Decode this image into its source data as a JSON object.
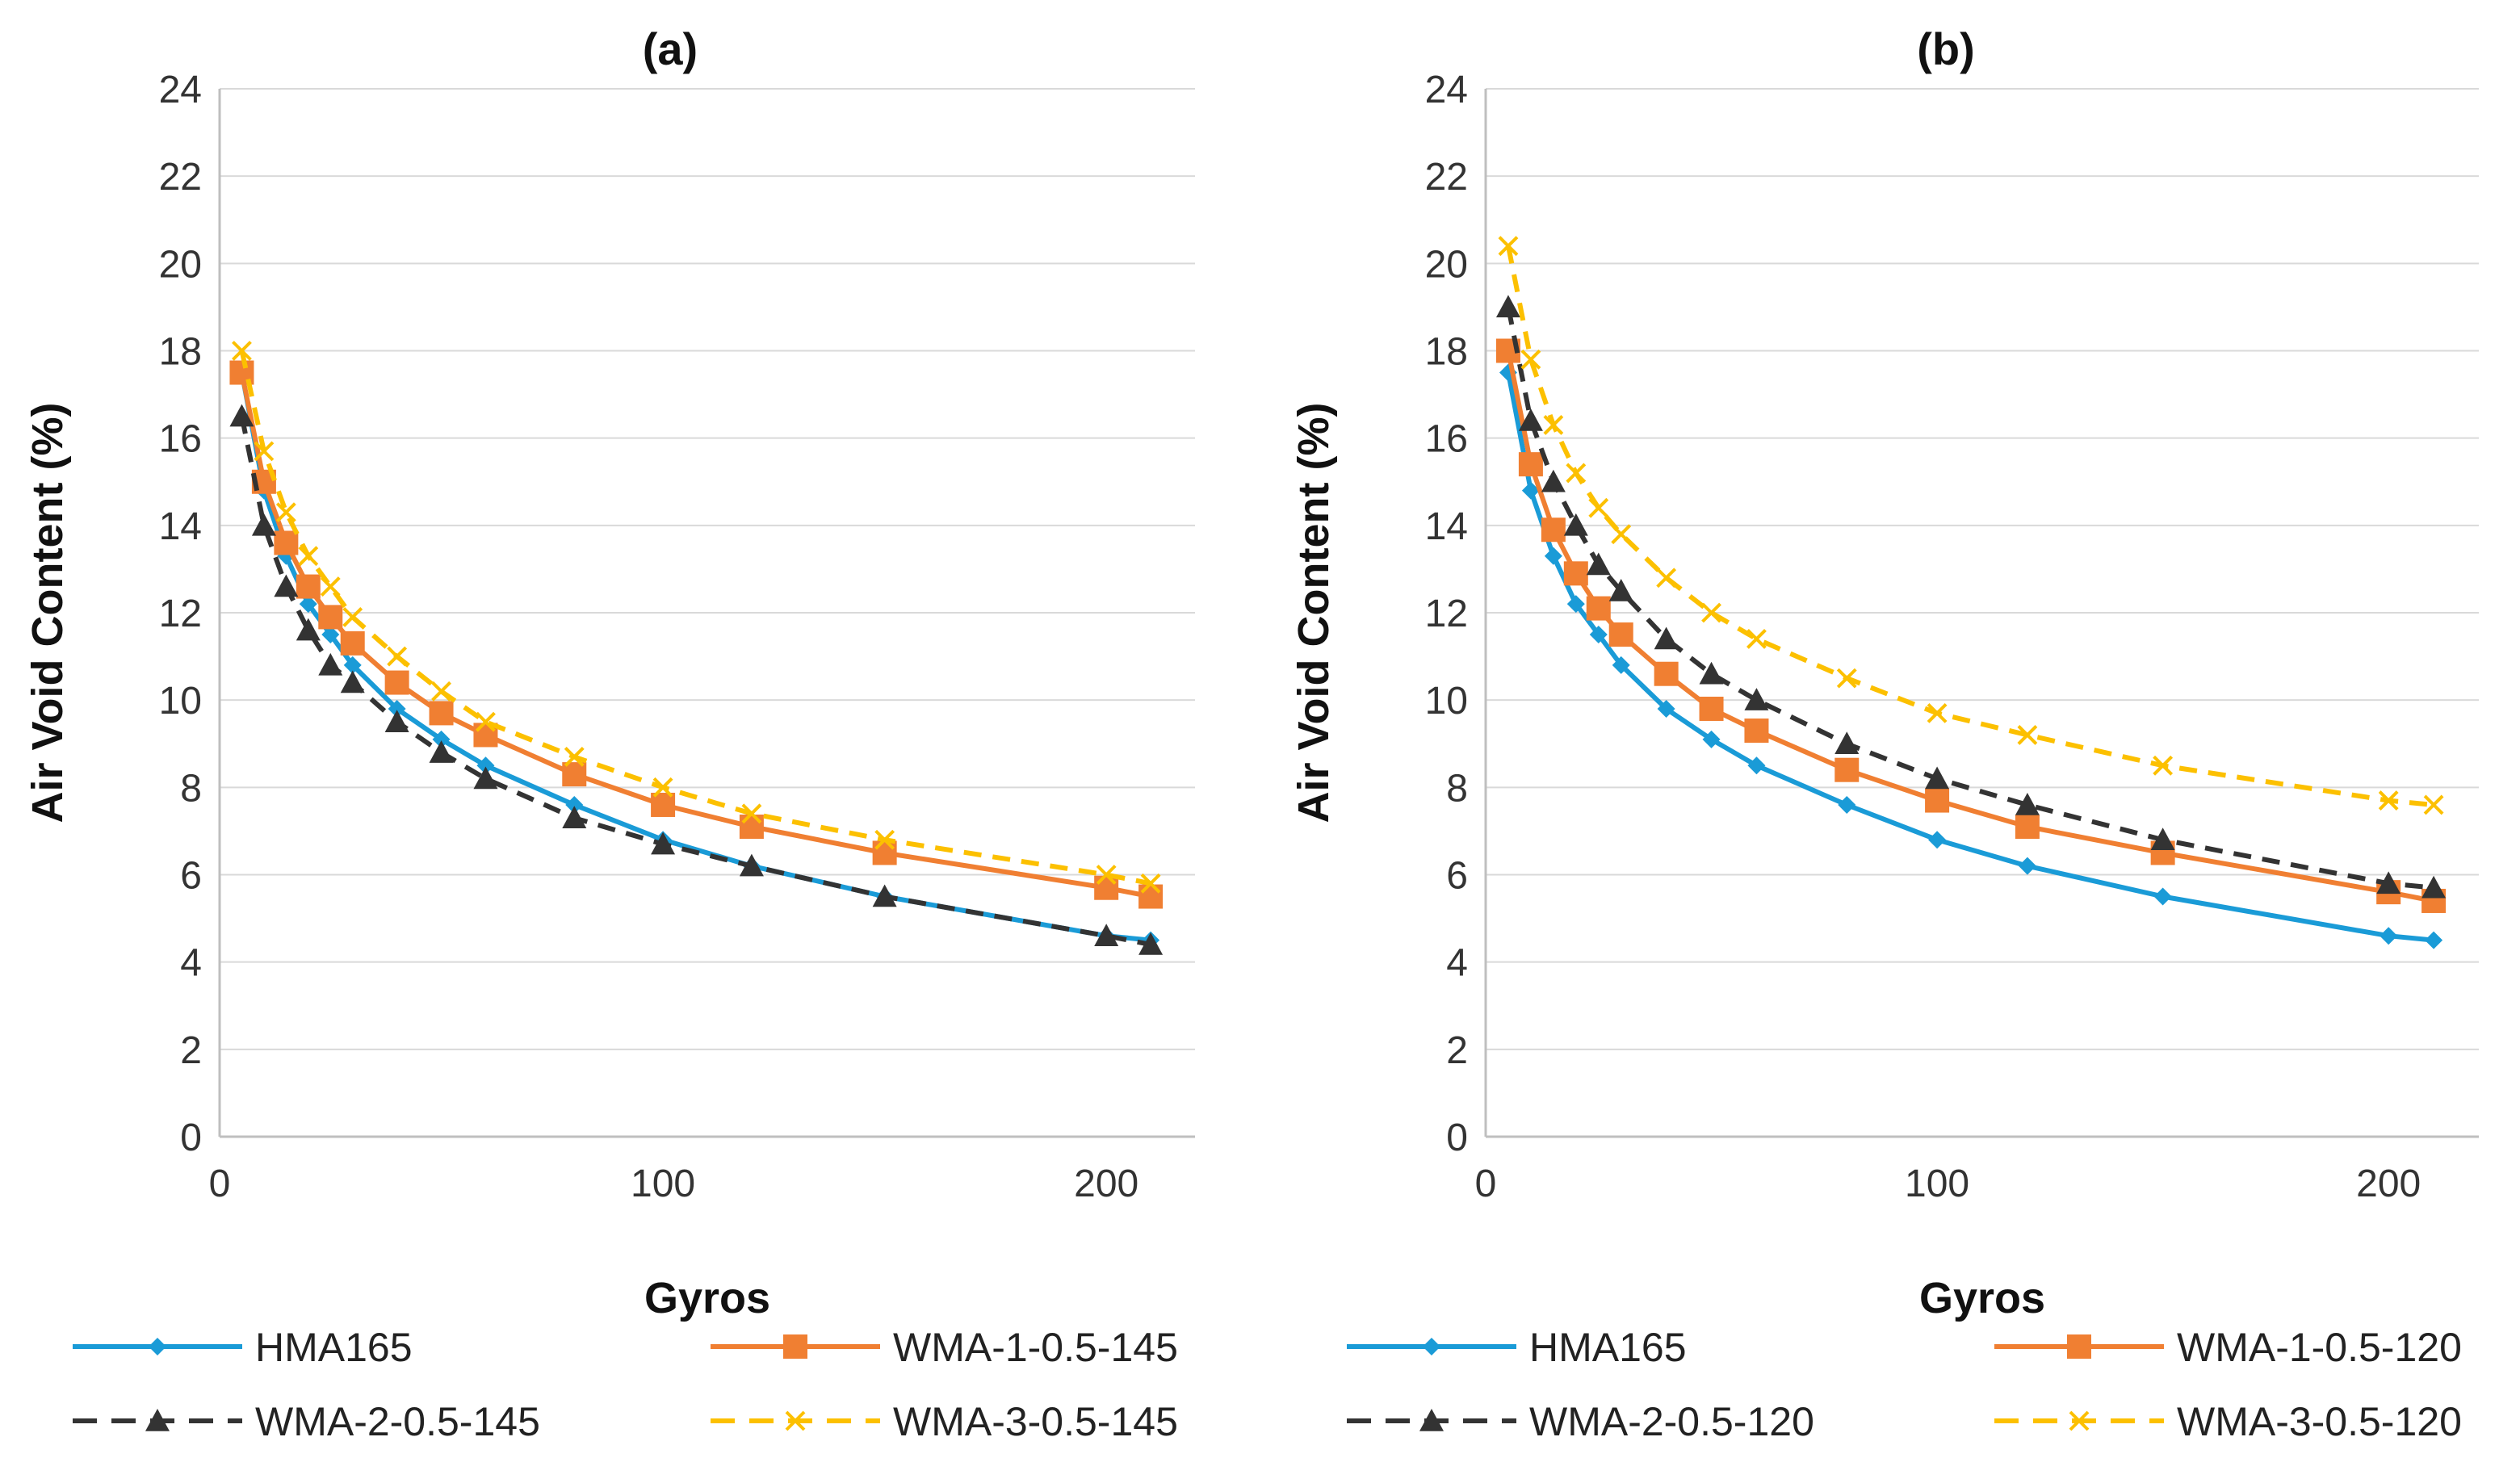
{
  "chart_data": [
    {
      "type": "line",
      "title": "(a)",
      "xlabel": "Gyros",
      "ylabel": "Air Void Content (%)",
      "xlim": [
        0,
        220
      ],
      "ylim": [
        0,
        24
      ],
      "xticks": [
        0,
        100,
        200
      ],
      "xtick_labels": [
        "0",
        "100",
        "200"
      ],
      "yticks": [
        0,
        2,
        4,
        6,
        8,
        10,
        12,
        14,
        16,
        18,
        20,
        22,
        24
      ],
      "ytick_labels": [
        "0",
        "2",
        "4",
        "6",
        "8",
        "10",
        "12",
        "14",
        "16",
        "18",
        "20",
        "22",
        "24"
      ],
      "grid": "horizontal",
      "legend_position": "bottom",
      "x": [
        5,
        10,
        15,
        20,
        25,
        30,
        40,
        50,
        60,
        80,
        100,
        120,
        150,
        200,
        210
      ],
      "series": [
        {
          "name": "HMA165",
          "color": "#1a9bd7",
          "dash": "solid",
          "marker": "diamond",
          "values": [
            17.5,
            14.8,
            13.3,
            12.2,
            11.5,
            10.8,
            9.8,
            9.1,
            8.5,
            7.6,
            6.8,
            6.2,
            5.5,
            4.6,
            4.5
          ]
        },
        {
          "name": "WMA-1-0.5-145",
          "color": "#f07f32",
          "dash": "solid",
          "marker": "square",
          "values": [
            17.5,
            15.0,
            13.6,
            12.6,
            11.9,
            11.3,
            10.4,
            9.7,
            9.2,
            8.3,
            7.6,
            7.1,
            6.5,
            5.7,
            5.5
          ]
        },
        {
          "name": "WMA-2-0.5-145",
          "color": "#333333",
          "dash": "dashed",
          "marker": "triangle",
          "values": [
            16.5,
            14.0,
            12.6,
            11.6,
            10.8,
            10.4,
            9.5,
            8.8,
            8.2,
            7.3,
            6.7,
            6.2,
            5.5,
            4.6,
            4.4
          ]
        },
        {
          "name": "WMA-3-0.5-145",
          "color": "#fcc000",
          "dash": "dashed",
          "marker": "x",
          "values": [
            18.0,
            15.7,
            14.3,
            13.3,
            12.6,
            11.9,
            11.0,
            10.2,
            9.5,
            8.7,
            8.0,
            7.4,
            6.8,
            6.0,
            5.8
          ]
        }
      ]
    },
    {
      "type": "line",
      "title": "(b)",
      "xlabel": "Gyros",
      "ylabel": "Air Void Content (%)",
      "xlim": [
        0,
        220
      ],
      "ylim": [
        0,
        24
      ],
      "xticks": [
        0,
        100,
        200
      ],
      "xtick_labels": [
        "0",
        "100",
        "200"
      ],
      "yticks": [
        0,
        2,
        4,
        6,
        8,
        10,
        12,
        14,
        16,
        18,
        20,
        22,
        24
      ],
      "ytick_labels": [
        "0",
        "2",
        "4",
        "6",
        "8",
        "10",
        "12",
        "14",
        "16",
        "18",
        "20",
        "22",
        "24"
      ],
      "grid": "horizontal",
      "legend_position": "bottom",
      "x": [
        5,
        10,
        15,
        20,
        25,
        30,
        40,
        50,
        60,
        80,
        100,
        120,
        150,
        200,
        210
      ],
      "series": [
        {
          "name": "HMA165",
          "color": "#1a9bd7",
          "dash": "solid",
          "marker": "diamond",
          "values": [
            17.5,
            14.8,
            13.3,
            12.2,
            11.5,
            10.8,
            9.8,
            9.1,
            8.5,
            7.6,
            6.8,
            6.2,
            5.5,
            4.6,
            4.5
          ]
        },
        {
          "name": "WMA-1-0.5-120",
          "color": "#f07f32",
          "dash": "solid",
          "marker": "square",
          "values": [
            18.0,
            15.4,
            13.9,
            12.9,
            12.1,
            11.5,
            10.6,
            9.8,
            9.3,
            8.4,
            7.7,
            7.1,
            6.5,
            5.6,
            5.4
          ]
        },
        {
          "name": "WMA-2-0.5-120",
          "color": "#333333",
          "dash": "dashed",
          "marker": "triangle",
          "values": [
            19.0,
            16.4,
            15.0,
            14.0,
            13.1,
            12.5,
            11.4,
            10.6,
            10.0,
            9.0,
            8.2,
            7.6,
            6.8,
            5.8,
            5.7
          ]
        },
        {
          "name": "WMA-3-0.5-120",
          "color": "#fcc000",
          "dash": "dashed",
          "marker": "x",
          "values": [
            20.4,
            17.8,
            16.3,
            15.2,
            14.4,
            13.8,
            12.8,
            12.0,
            11.4,
            10.5,
            9.7,
            9.2,
            8.5,
            7.7,
            7.6
          ]
        }
      ]
    }
  ]
}
